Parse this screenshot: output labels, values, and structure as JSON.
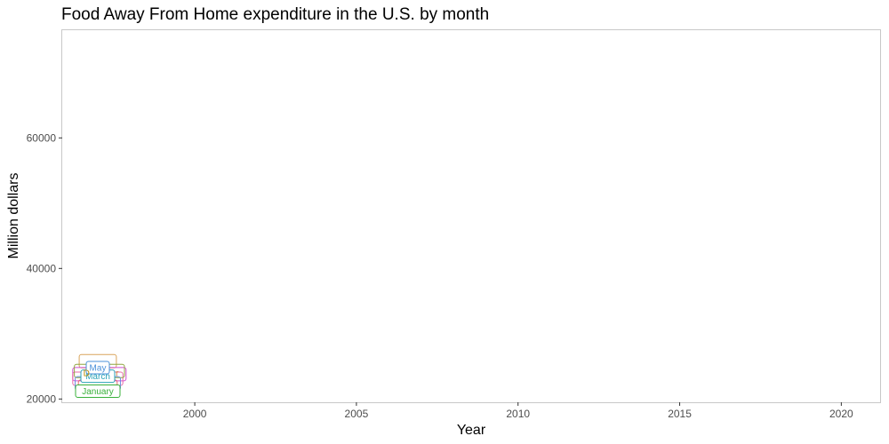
{
  "chart_data": {
    "type": "line",
    "title": "Food Away From Home expenditure in the U.S. by month",
    "xlabel": "Year",
    "ylabel": "Million dollars",
    "xlim": [
      1995.9,
      2021.2
    ],
    "ylim": [
      19500,
      76500
    ],
    "xticks": [
      2000,
      2005,
      2010,
      2015,
      2020
    ],
    "yticks": [
      20000,
      40000,
      60000
    ],
    "grid": false,
    "legend": "none",
    "annotation_labels": [
      {
        "text": "January",
        "x": 1997.0,
        "y": 21200,
        "color": "#38b03a"
      },
      {
        "text": "March",
        "x": 1997.0,
        "y": 23500,
        "color": "#2aa3b8"
      },
      {
        "text": "May",
        "x": 1997.0,
        "y": 24800,
        "color": "#4a90d9"
      },
      {
        "text": "D",
        "x": 1996.65,
        "y": 24000,
        "color": "#b88a00"
      },
      {
        "text": "r",
        "x": 1997.6,
        "y": 24000,
        "color": "#d08040"
      }
    ],
    "background_label_boxes": [
      {
        "x": 1997.0,
        "y": 25800,
        "w": 1.15,
        "color": "#d9a45a"
      },
      {
        "x": 1997.05,
        "y": 23800,
        "w": 1.65,
        "color": "#d04fd4"
      },
      {
        "x": 1997.0,
        "y": 23100,
        "w": 1.55,
        "color": "#e86aa8"
      },
      {
        "x": 1997.05,
        "y": 24300,
        "w": 1.55,
        "color": "#8fa640"
      },
      {
        "x": 1997.0,
        "y": 22400,
        "w": 1.4,
        "color": "#6a8fe0"
      },
      {
        "x": 1997.0,
        "y": 21900,
        "w": 1.2,
        "color": "#e06a6a"
      }
    ]
  }
}
